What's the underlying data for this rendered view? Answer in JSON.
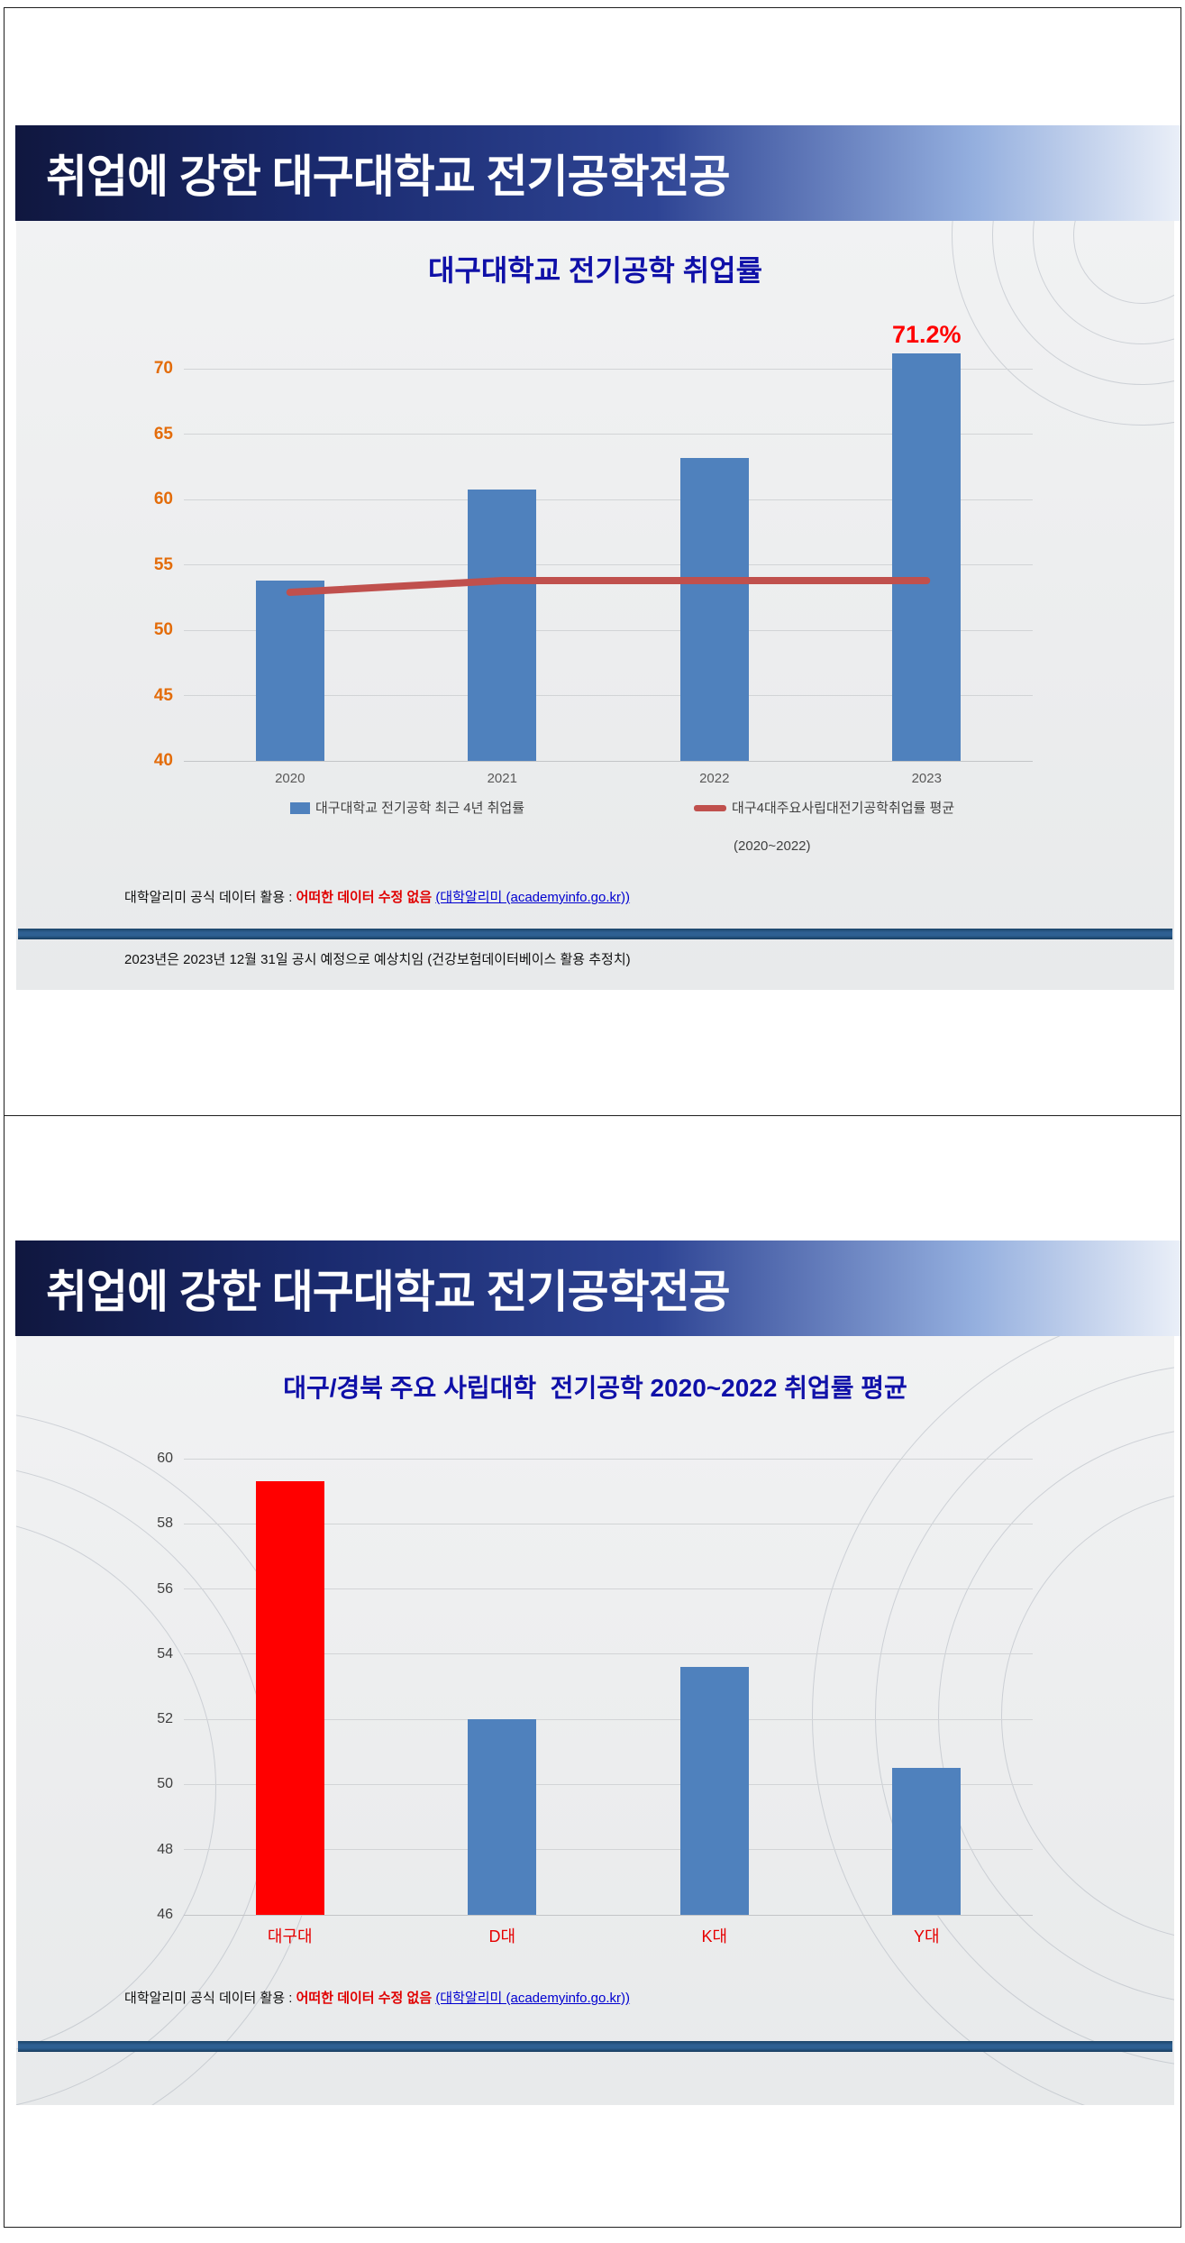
{
  "slides": [
    {
      "banner_title": "취업에 강한 대구대학교 전기공학전공",
      "footnote": {
        "prefix": "대학알리미 공식 데이터 활용 : ",
        "emphasis": "어떠한 데이터 수정 없음",
        "link": "(대학알리미 (academyinfo.go.kr))",
        "line2": "2023년은 2023년 12월 31일 공시 예정으로 예상치임 (건강보험데이터베이스 활용 추정치)"
      }
    },
    {
      "banner_title": "취업에 강한 대구대학교 전기공학전공",
      "footnote": {
        "prefix": "대학알리미 공식 데이터 활용 : ",
        "emphasis": "어떠한 데이터 수정 없음",
        "link": "(대학알리미 (academyinfo.go.kr))"
      }
    }
  ],
  "colors": {
    "bar_blue": "#4f81bd",
    "line_red": "#c0504d",
    "highlight_red": "#ff0000",
    "tick_orange": "#e36c0a",
    "title_blue": "#0f10a8",
    "banner_navy": "#10173f",
    "divider_blue": "#2e6092"
  },
  "chart_data": [
    {
      "type": "bar",
      "title": "대구대학교 전기공학 취업률",
      "categories": [
        "2020",
        "2021",
        "2022",
        "2023"
      ],
      "series": [
        {
          "name": "대구대학교 전기공학 최근 4년 취업률",
          "type": "bar",
          "values": [
            53.8,
            60.8,
            63.2,
            71.2
          ],
          "color": "#4f81bd"
        },
        {
          "name": "대구4대주요사립대전기공학취업률 평균",
          "name_line2": "(2020~2022)",
          "type": "line",
          "values": [
            52.9,
            53.8,
            53.8,
            53.8
          ],
          "color": "#c0504d"
        }
      ],
      "ylim": [
        40,
        72.5
      ],
      "yticks": [
        40,
        45,
        50,
        55,
        60,
        65,
        70
      ],
      "ytick_color": "#e36c0a",
      "xtick_color": "#595959",
      "grid": true,
      "legend_position": "bottom",
      "data_label": {
        "series": 0,
        "index": 3,
        "text": "71.2%",
        "color": "#ff0000"
      }
    },
    {
      "type": "bar",
      "title": "대구/경북 주요 사립대학  전기공학 2020~2022 취업률 평균",
      "categories": [
        "대구대",
        "D대",
        "K대",
        "Y대"
      ],
      "values": [
        59.3,
        52.0,
        53.6,
        50.5
      ],
      "bar_colors": [
        "#ff0000",
        "#4f81bd",
        "#4f81bd",
        "#4f81bd"
      ],
      "default_bar_color": "#4f81bd",
      "ylim": [
        46,
        60.5
      ],
      "yticks": [
        46,
        48,
        50,
        52,
        54,
        56,
        58,
        60
      ],
      "ytick_color": "#3f3f3f",
      "xtick_color": "#e60000",
      "grid": true,
      "legend_position": "none"
    }
  ]
}
